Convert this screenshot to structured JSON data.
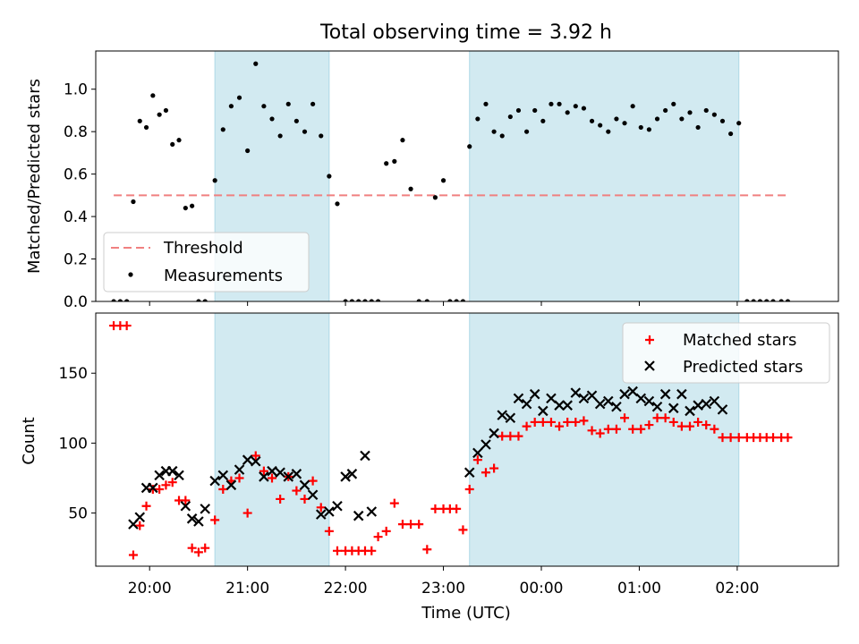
{
  "colors": {
    "shade": "#add8e6",
    "threshold": "#f08080",
    "measurement": "#000000",
    "matched": "#ff0000",
    "predicted": "#000000"
  },
  "chart_data": [
    {
      "type": "scatter",
      "title": "Total observing time = 3.92 h",
      "xlabel": "",
      "ylabel": "Matched/Predicted stars",
      "ylim": [
        0,
        1.18
      ],
      "yticks": [
        0.0,
        0.2,
        0.4,
        0.6,
        0.8,
        1.0
      ],
      "ytick_labels": [
        "0.0",
        "0.2",
        "0.4",
        "0.6",
        "0.8",
        "1.0"
      ],
      "xlim": [
        "19:27",
        "03:02"
      ],
      "legend_position": "lower-left",
      "shaded_intervals": [
        [
          "20:40",
          "21:50"
        ],
        [
          "23:16",
          "02:01"
        ]
      ],
      "threshold": {
        "name": "Threshold",
        "y": 0.5,
        "x_from": "19:38",
        "x_to": "02:31"
      },
      "series": [
        {
          "name": "Measurements",
          "points": [
            [
              "19:38",
              0.0
            ],
            [
              "19:42",
              0.0
            ],
            [
              "19:46",
              0.0
            ],
            [
              "19:50",
              0.47
            ],
            [
              "19:54",
              0.85
            ],
            [
              "19:58",
              0.82
            ],
            [
              "20:02",
              0.97
            ],
            [
              "20:06",
              0.88
            ],
            [
              "20:10",
              0.9
            ],
            [
              "20:14",
              0.74
            ],
            [
              "20:18",
              0.76
            ],
            [
              "20:22",
              0.44
            ],
            [
              "20:26",
              0.45
            ],
            [
              "20:30",
              0.0
            ],
            [
              "20:34",
              0.0
            ],
            [
              "20:40",
              0.57
            ],
            [
              "20:45",
              0.81
            ],
            [
              "20:50",
              0.92
            ],
            [
              "20:55",
              0.96
            ],
            [
              "21:00",
              0.71
            ],
            [
              "21:05",
              1.12
            ],
            [
              "21:10",
              0.92
            ],
            [
              "21:15",
              0.86
            ],
            [
              "21:20",
              0.78
            ],
            [
              "21:25",
              0.93
            ],
            [
              "21:30",
              0.85
            ],
            [
              "21:35",
              0.8
            ],
            [
              "21:40",
              0.93
            ],
            [
              "21:45",
              0.78
            ],
            [
              "21:50",
              0.59
            ],
            [
              "21:55",
              0.46
            ],
            [
              "22:00",
              0.0
            ],
            [
              "22:04",
              0.0
            ],
            [
              "22:08",
              0.0
            ],
            [
              "22:12",
              0.0
            ],
            [
              "22:16",
              0.0
            ],
            [
              "22:20",
              0.0
            ],
            [
              "22:25",
              0.65
            ],
            [
              "22:30",
              0.66
            ],
            [
              "22:35",
              0.76
            ],
            [
              "22:40",
              0.53
            ],
            [
              "22:45",
              0.0
            ],
            [
              "22:50",
              0.0
            ],
            [
              "22:55",
              0.49
            ],
            [
              "23:00",
              0.57
            ],
            [
              "23:04",
              0.0
            ],
            [
              "23:08",
              0.0
            ],
            [
              "23:12",
              0.0
            ],
            [
              "23:16",
              0.73
            ],
            [
              "23:21",
              0.86
            ],
            [
              "23:26",
              0.93
            ],
            [
              "23:31",
              0.8
            ],
            [
              "23:36",
              0.78
            ],
            [
              "23:41",
              0.87
            ],
            [
              "23:46",
              0.9
            ],
            [
              "23:51",
              0.8
            ],
            [
              "23:56",
              0.9
            ],
            [
              "00:01",
              0.85
            ],
            [
              "00:06",
              0.93
            ],
            [
              "00:11",
              0.93
            ],
            [
              "00:16",
              0.89
            ],
            [
              "00:21",
              0.92
            ],
            [
              "00:26",
              0.91
            ],
            [
              "00:31",
              0.85
            ],
            [
              "00:36",
              0.83
            ],
            [
              "00:41",
              0.8
            ],
            [
              "00:46",
              0.86
            ],
            [
              "00:51",
              0.84
            ],
            [
              "00:56",
              0.92
            ],
            [
              "01:01",
              0.82
            ],
            [
              "01:06",
              0.81
            ],
            [
              "01:11",
              0.86
            ],
            [
              "01:16",
              0.9
            ],
            [
              "01:21",
              0.93
            ],
            [
              "01:26",
              0.86
            ],
            [
              "01:31",
              0.89
            ],
            [
              "01:36",
              0.82
            ],
            [
              "01:41",
              0.9
            ],
            [
              "01:46",
              0.88
            ],
            [
              "01:51",
              0.85
            ],
            [
              "01:56",
              0.79
            ],
            [
              "02:01",
              0.84
            ],
            [
              "02:06",
              0.0
            ],
            [
              "02:10",
              0.0
            ],
            [
              "02:14",
              0.0
            ],
            [
              "02:18",
              0.0
            ],
            [
              "02:22",
              0.0
            ],
            [
              "02:27",
              0.0
            ],
            [
              "02:31",
              0.0
            ]
          ]
        }
      ]
    },
    {
      "type": "scatter",
      "title": "",
      "xlabel": "Time (UTC)",
      "ylabel": "Count",
      "ylim": [
        12,
        193
      ],
      "yticks": [
        50,
        100,
        150
      ],
      "ytick_labels": [
        "50",
        "100",
        "150"
      ],
      "xlim": [
        "19:27",
        "03:02"
      ],
      "xticks": [
        "20:00",
        "21:00",
        "22:00",
        "23:00",
        "00:00",
        "01:00",
        "02:00"
      ],
      "xtick_labels": [
        "20:00",
        "21:00",
        "22:00",
        "23:00",
        "00:00",
        "01:00",
        "02:00"
      ],
      "legend_position": "upper-right",
      "shaded_intervals": [
        [
          "20:40",
          "21:50"
        ],
        [
          "23:16",
          "02:01"
        ]
      ],
      "series": [
        {
          "name": "Matched stars",
          "marker": "plus",
          "points": [
            [
              "19:38",
              184
            ],
            [
              "19:42",
              184
            ],
            [
              "19:46",
              184
            ],
            [
              "19:50",
              20
            ],
            [
              "19:54",
              41
            ],
            [
              "19:58",
              55
            ],
            [
              "20:02",
              67
            ],
            [
              "20:06",
              67
            ],
            [
              "20:10",
              70
            ],
            [
              "20:14",
              72
            ],
            [
              "20:18",
              59
            ],
            [
              "20:22",
              59
            ],
            [
              "20:26",
              25
            ],
            [
              "20:30",
              22
            ],
            [
              "20:34",
              25
            ],
            [
              "20:40",
              45
            ],
            [
              "20:45",
              67
            ],
            [
              "20:50",
              73
            ],
            [
              "20:55",
              75
            ],
            [
              "21:00",
              50
            ],
            [
              "21:05",
              91
            ],
            [
              "21:10",
              80
            ],
            [
              "21:15",
              75
            ],
            [
              "21:20",
              60
            ],
            [
              "21:25",
              76
            ],
            [
              "21:30",
              66
            ],
            [
              "21:35",
              60
            ],
            [
              "21:40",
              73
            ],
            [
              "21:45",
              54
            ],
            [
              "21:50",
              37
            ],
            [
              "21:55",
              23
            ],
            [
              "22:00",
              23
            ],
            [
              "22:04",
              23
            ],
            [
              "22:08",
              23
            ],
            [
              "22:12",
              23
            ],
            [
              "22:16",
              23
            ],
            [
              "22:20",
              33
            ],
            [
              "22:25",
              37
            ],
            [
              "22:30",
              57
            ],
            [
              "22:35",
              42
            ],
            [
              "22:40",
              42
            ],
            [
              "22:45",
              42
            ],
            [
              "22:50",
              24
            ],
            [
              "22:55",
              53
            ],
            [
              "23:00",
              53
            ],
            [
              "23:04",
              53
            ],
            [
              "23:08",
              53
            ],
            [
              "23:12",
              38
            ],
            [
              "23:16",
              67
            ],
            [
              "23:21",
              88
            ],
            [
              "23:26",
              79
            ],
            [
              "23:31",
              82
            ],
            [
              "23:36",
              105
            ],
            [
              "23:41",
              105
            ],
            [
              "23:46",
              105
            ],
            [
              "23:51",
              112
            ],
            [
              "23:56",
              115
            ],
            [
              "00:01",
              115
            ],
            [
              "00:06",
              115
            ],
            [
              "00:11",
              112
            ],
            [
              "00:16",
              115
            ],
            [
              "00:21",
              115
            ],
            [
              "00:26",
              116
            ],
            [
              "00:31",
              109
            ],
            [
              "00:36",
              107
            ],
            [
              "00:41",
              110
            ],
            [
              "00:46",
              110
            ],
            [
              "00:51",
              118
            ],
            [
              "00:56",
              110
            ],
            [
              "01:01",
              110
            ],
            [
              "01:06",
              113
            ],
            [
              "01:11",
              118
            ],
            [
              "01:16",
              118
            ],
            [
              "01:21",
              115
            ],
            [
              "01:26",
              112
            ],
            [
              "01:31",
              112
            ],
            [
              "01:36",
              115
            ],
            [
              "01:41",
              113
            ],
            [
              "01:46",
              110
            ],
            [
              "01:51",
              104
            ],
            [
              "01:56",
              104
            ],
            [
              "02:01",
              104
            ],
            [
              "02:06",
              104
            ],
            [
              "02:10",
              104
            ],
            [
              "02:14",
              104
            ],
            [
              "02:18",
              104
            ],
            [
              "02:22",
              104
            ],
            [
              "02:27",
              104
            ],
            [
              "02:31",
              104
            ]
          ]
        },
        {
          "name": "Predicted stars",
          "marker": "x",
          "points": [
            [
              "19:50",
              42
            ],
            [
              "19:54",
              47
            ],
            [
              "19:58",
              68
            ],
            [
              "20:02",
              68
            ],
            [
              "20:06",
              77
            ],
            [
              "20:10",
              80
            ],
            [
              "20:14",
              80
            ],
            [
              "20:18",
              77
            ],
            [
              "20:22",
              55
            ],
            [
              "20:26",
              46
            ],
            [
              "20:30",
              44
            ],
            [
              "20:34",
              53
            ],
            [
              "20:40",
              73
            ],
            [
              "20:45",
              77
            ],
            [
              "20:50",
              70
            ],
            [
              "20:55",
              81
            ],
            [
              "21:00",
              88
            ],
            [
              "21:05",
              87
            ],
            [
              "21:10",
              76
            ],
            [
              "21:15",
              80
            ],
            [
              "21:20",
              79
            ],
            [
              "21:25",
              76
            ],
            [
              "21:30",
              78
            ],
            [
              "21:35",
              70
            ],
            [
              "21:40",
              63
            ],
            [
              "21:45",
              49
            ],
            [
              "21:50",
              51
            ],
            [
              "21:55",
              55
            ],
            [
              "22:00",
              76
            ],
            [
              "22:04",
              78
            ],
            [
              "22:08",
              48
            ],
            [
              "22:12",
              91
            ],
            [
              "22:16",
              51
            ],
            [
              "23:16",
              79
            ],
            [
              "23:21",
              93
            ],
            [
              "23:26",
              99
            ],
            [
              "23:31",
              107
            ],
            [
              "23:36",
              120
            ],
            [
              "23:41",
              118
            ],
            [
              "23:46",
              132
            ],
            [
              "23:51",
              128
            ],
            [
              "23:56",
              135
            ],
            [
              "00:01",
              123
            ],
            [
              "00:06",
              132
            ],
            [
              "00:11",
              127
            ],
            [
              "00:16",
              127
            ],
            [
              "00:21",
              136
            ],
            [
              "00:26",
              132
            ],
            [
              "00:31",
              134
            ],
            [
              "00:36",
              128
            ],
            [
              "00:41",
              130
            ],
            [
              "00:46",
              126
            ],
            [
              "00:51",
              135
            ],
            [
              "00:56",
              137
            ],
            [
              "01:01",
              132
            ],
            [
              "01:06",
              130
            ],
            [
              "01:11",
              126
            ],
            [
              "01:16",
              135
            ],
            [
              "01:21",
              125
            ],
            [
              "01:26",
              135
            ],
            [
              "01:31",
              123
            ],
            [
              "01:36",
              127
            ],
            [
              "01:41",
              128
            ],
            [
              "01:46",
              130
            ],
            [
              "01:51",
              124
            ]
          ]
        }
      ]
    }
  ]
}
